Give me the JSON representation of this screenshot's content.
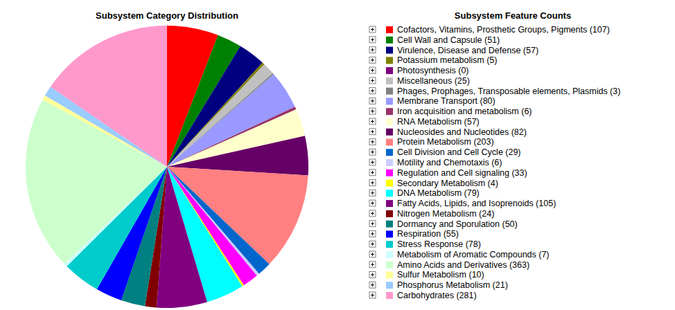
{
  "chart_data": {
    "type": "pie",
    "title": "Subsystem Category Distribution",
    "legend_title": "Subsystem Feature Counts",
    "categories": [
      "Cofactors, Vitamins, Prosthetic Groups, Pigments (107)",
      "Cell Wall and Capsule (51)",
      "Virulence, Disease and Defense (57)",
      "Potassium metabolism (5)",
      "Photosynthesis (0)",
      "Miscellaneous (25)",
      "Phages, Prophages, Transposable elements, Plasmids (3)",
      "Membrane Transport (80)",
      "Iron acquisition and metabolism (6)",
      "RNA Metabolism (57)",
      "Nucleosides and Nucleotides (82)",
      "Protein Metabolism (203)",
      "Cell Division and Cell Cycle (29)",
      "Motility and Chemotaxis (6)",
      "Regulation and Cell signaling (33)",
      "Secondary Metabolism (4)",
      "DNA Metabolism (79)",
      "Fatty Acids, Lipids, and Isoprenoids (105)",
      "Nitrogen Metabolism (24)",
      "Dormancy and Sporulation (50)",
      "Respiration (55)",
      "Stress Response (78)",
      "Metabolism of Aromatic Compounds (7)",
      "Amino Acids and Derivatives (363)",
      "Sulfur Metabolism (10)",
      "Phosphorus Metabolism (21)",
      "Carbohydrates (281)"
    ],
    "values": [
      107,
      51,
      57,
      5,
      0,
      25,
      3,
      80,
      6,
      57,
      82,
      203,
      29,
      6,
      33,
      4,
      79,
      105,
      24,
      50,
      55,
      78,
      7,
      363,
      10,
      21,
      281
    ],
    "colors": [
      "#ff0000",
      "#008000",
      "#000080",
      "#808000",
      "#800080",
      "#c0c0c0",
      "#808080",
      "#9999ff",
      "#993366",
      "#ffffcc",
      "#660066",
      "#ff8080",
      "#0066cc",
      "#ccccff",
      "#ff00ff",
      "#ffff00",
      "#00ffff",
      "#800080",
      "#800000",
      "#008080",
      "#0000ff",
      "#00cccc",
      "#ccffff",
      "#ccffcc",
      "#ffff99",
      "#99ccff",
      "#ff99cc"
    ],
    "legend": "right"
  }
}
